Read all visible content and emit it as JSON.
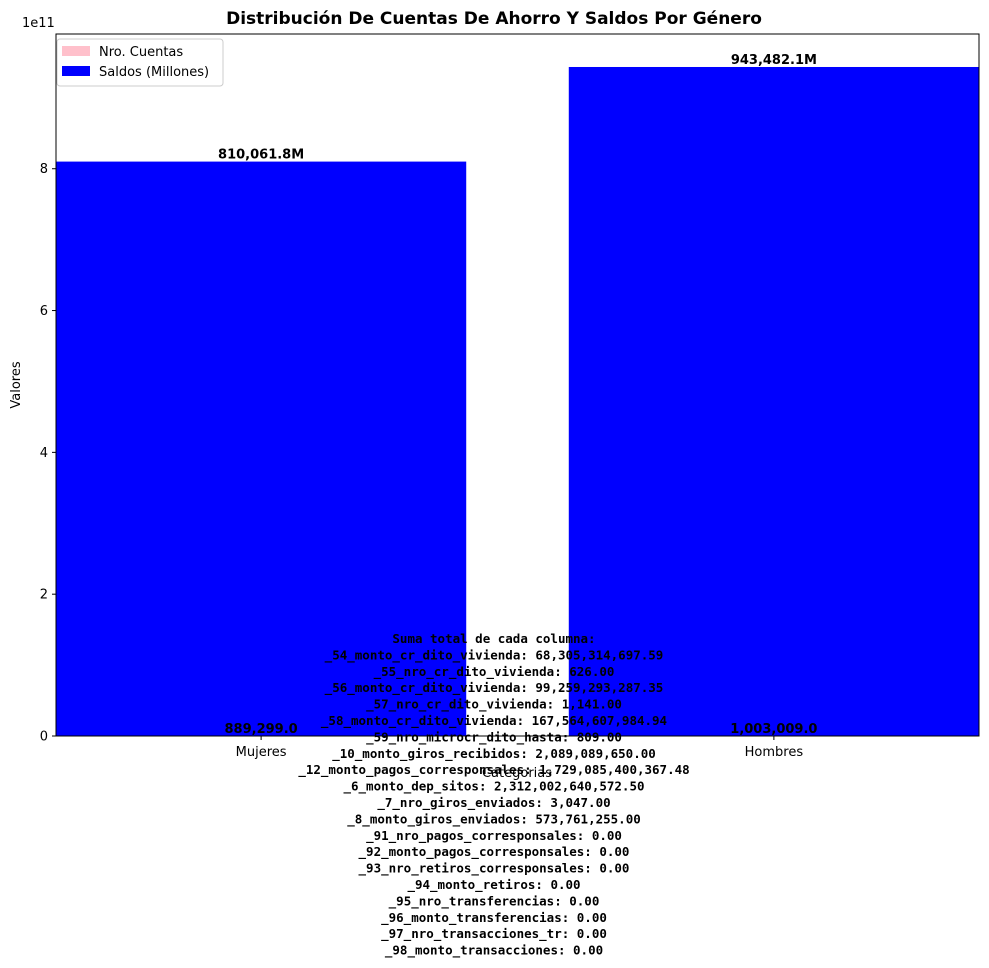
{
  "chart_data": {
    "type": "bar",
    "title": "Distribución De Cuentas De Ahorro Y Saldos Por Género",
    "xlabel": "Categorias",
    "ylabel": "Valores",
    "y_offset_label": "1e11",
    "categories": [
      "Mujeres",
      "Hombres"
    ],
    "ylim": [
      0,
      990000000000
    ],
    "y_ticks": [
      0,
      200000000000,
      400000000000,
      600000000000,
      800000000000
    ],
    "y_tick_labels": [
      "0",
      "2",
      "4",
      "6",
      "8"
    ],
    "series": [
      {
        "name": "Nro. Cuentas",
        "color": "#ffc0cb",
        "values": [
          889299,
          1003009
        ],
        "labels": [
          "889,299.0",
          "1,003,009.0"
        ]
      },
      {
        "name": "Saldos (Millones)",
        "color": "#0000ff",
        "values": [
          810061800000,
          943482100000
        ],
        "labels": [
          "810,061.8M",
          "943,482.1M"
        ]
      }
    ],
    "legend_position": "upper-left",
    "grid": false,
    "annotation_lines": [
      "Suma total de cada columna:",
      "_54_monto_cr_dito_vivienda: 68,305,314,697.59",
      "_55_nro_cr_dito_vivienda: 626.00",
      "_56_monto_cr_dito_vivienda: 99,259,293,287.35",
      "_57_nro_cr_dito_vivienda: 1,141.00",
      "_58_monto_cr_dito_vivienda: 167,564,607,984.94",
      "_59_nro_microcr_dito_hasta: 809.00",
      "_10_monto_giros_recibidos: 2,089,089,650.00",
      "_12_monto_pagos_corresponsales: 1,729,085,400,367.48",
      "_6_monto_dep_sitos: 2,312,002,640,572.50",
      "_7_nro_giros_enviados: 3,047.00",
      "_8_monto_giros_enviados: 573,761,255.00",
      "_91_nro_pagos_corresponsales: 0.00",
      "_92_monto_pagos_corresponsales: 0.00",
      "_93_nro_retiros_corresponsales: 0.00",
      "_94_monto_retiros: 0.00",
      "_95_nro_transferencias: 0.00",
      "_96_monto_transferencias: 0.00",
      "_97_nro_transacciones_tr: 0.00",
      "_98_monto_transacciones: 0.00"
    ]
  }
}
